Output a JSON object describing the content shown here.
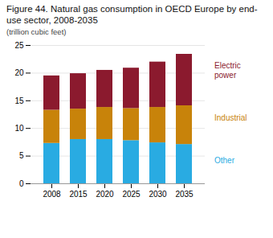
{
  "chart_data": {
    "type": "bar",
    "stacked": true,
    "title": "Figure 44. Natural gas consumption in OECD Europe by end-use sector, 2008-2035",
    "subtitle": "(trillion cubic feet)",
    "categories": [
      "2008",
      "2015",
      "2020",
      "2025",
      "2030",
      "2035"
    ],
    "series": [
      {
        "name": "Other",
        "color": "#29abe2",
        "values": [
          7.3,
          8.0,
          8.0,
          7.8,
          7.4,
          7.1
        ]
      },
      {
        "name": "Industrial",
        "color": "#c8830a",
        "values": [
          6.0,
          5.5,
          5.8,
          5.8,
          6.4,
          7.0
        ]
      },
      {
        "name": "Electric\npower",
        "color": "#8b1a2e",
        "values": [
          6.2,
          6.4,
          6.7,
          7.3,
          8.2,
          9.3
        ]
      }
    ],
    "ylim": [
      0,
      25
    ],
    "yticks": [
      0,
      5,
      10,
      15,
      20,
      25
    ],
    "grid": true,
    "legend": "right"
  }
}
